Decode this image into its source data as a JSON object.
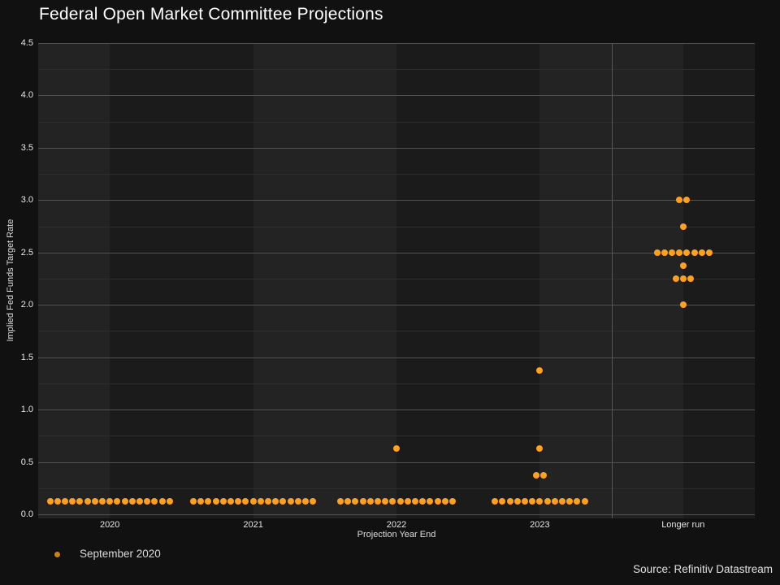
{
  "title": "Federal Open Market Committee Projections",
  "source": "Source: Refinitiv Datastream",
  "legend": {
    "label": "September 2020",
    "marker_color": "#C8831E"
  },
  "colors": {
    "background": "#111111",
    "band_light": "#232323",
    "band_dark": "#1B1B1B",
    "grid_major": "#505050",
    "grid_minor": "#2D2D2D",
    "dot": "#FFA01E",
    "text": "#E6E6E6"
  },
  "chart_data": {
    "type": "scatter",
    "title": "Federal Open Market Committee Projections",
    "xlabel": "Projection Year End",
    "ylabel": "Implied Fed Funds Target Rate",
    "ylim": [
      0,
      4.5
    ],
    "y_tick_labels": [
      "0.0",
      "0.5",
      "1.0",
      "1.5",
      "2.0",
      "2.5",
      "3.0",
      "3.5",
      "4.0",
      "4.5"
    ],
    "y_minor_step": 0.25,
    "grid": true,
    "legend_position": "bottom-left",
    "categories": [
      "2020",
      "2021",
      "2022",
      "2023",
      "Longer run"
    ],
    "separator_before_category": "Longer run",
    "series": [
      {
        "name": "September 2020",
        "color": "#FFA01E",
        "points": [
          {
            "category": "2020",
            "rate": 0.125,
            "count": 17
          },
          {
            "category": "2021",
            "rate": 0.125,
            "count": 17
          },
          {
            "category": "2022",
            "rate": 0.125,
            "count": 16
          },
          {
            "category": "2022",
            "rate": 0.625,
            "count": 1
          },
          {
            "category": "2023",
            "rate": 0.125,
            "count": 13
          },
          {
            "category": "2023",
            "rate": 0.375,
            "count": 2
          },
          {
            "category": "2023",
            "rate": 0.625,
            "count": 1
          },
          {
            "category": "2023",
            "rate": 1.375,
            "count": 1
          },
          {
            "category": "Longer run",
            "rate": 2.0,
            "count": 1
          },
          {
            "category": "Longer run",
            "rate": 2.25,
            "count": 3
          },
          {
            "category": "Longer run",
            "rate": 2.375,
            "count": 1
          },
          {
            "category": "Longer run",
            "rate": 2.5,
            "count": 8
          },
          {
            "category": "Longer run",
            "rate": 2.75,
            "count": 1
          },
          {
            "category": "Longer run",
            "rate": 3.0,
            "count": 2
          }
        ]
      }
    ]
  }
}
